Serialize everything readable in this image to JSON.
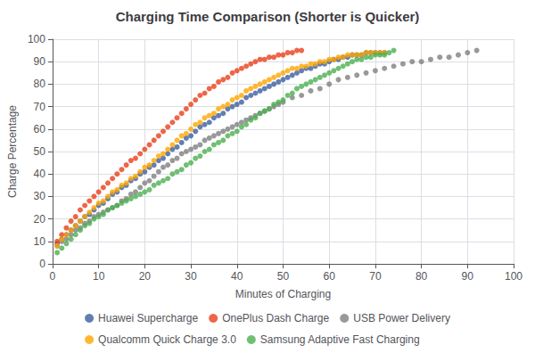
{
  "chart_data": {
    "type": "scatter",
    "title": "Charging Time Comparison (Shorter is Quicker)",
    "xlabel": "Minutes of Charging",
    "ylabel": "Charge Percentage",
    "xlim": [
      0,
      100
    ],
    "ylim": [
      0,
      100
    ],
    "xticks": [
      0,
      10,
      20,
      30,
      40,
      50,
      60,
      70,
      80,
      90,
      100
    ],
    "yticks": [
      0,
      10,
      20,
      30,
      40,
      50,
      60,
      70,
      80,
      90,
      100
    ],
    "grid": true,
    "legend": "bottom",
    "series": [
      {
        "name": "Huawei Supercharge",
        "color": "#3b5fa0",
        "x": [
          1,
          2,
          3,
          4,
          5,
          6,
          7,
          8,
          9,
          10,
          11,
          12,
          13,
          14,
          15,
          16,
          17,
          18,
          19,
          20,
          21,
          22,
          23,
          24,
          25,
          26,
          27,
          28,
          29,
          30,
          31,
          32,
          33,
          34,
          35,
          36,
          37,
          38,
          39,
          40,
          41,
          42,
          43,
          44,
          45,
          46,
          47,
          48,
          49,
          50,
          51,
          52,
          53,
          54,
          55,
          56,
          57,
          58,
          59,
          60,
          61,
          62,
          63,
          64,
          65,
          66,
          67,
          68,
          69,
          70,
          71,
          72
        ],
        "values": [
          9,
          11,
          13,
          15,
          17,
          19,
          21,
          22,
          24,
          26,
          27,
          29,
          31,
          32,
          34,
          35,
          37,
          38,
          40,
          41,
          43,
          44,
          46,
          47,
          49,
          51,
          52,
          54,
          56,
          57,
          59,
          61,
          62,
          63,
          65,
          66,
          67,
          69,
          70,
          71,
          72,
          74,
          75,
          76,
          77,
          78,
          79,
          80,
          81,
          82,
          83,
          84,
          85,
          86,
          87,
          87,
          88,
          89,
          89,
          90,
          91,
          91,
          92,
          92,
          93,
          93,
          93,
          94,
          94,
          94,
          94,
          94
        ]
      },
      {
        "name": "OnePlus Dash Charge",
        "color": "#e8401c",
        "x": [
          1,
          2,
          3,
          4,
          5,
          6,
          7,
          8,
          9,
          10,
          11,
          12,
          13,
          14,
          15,
          16,
          17,
          18,
          19,
          20,
          21,
          22,
          23,
          24,
          25,
          26,
          27,
          28,
          29,
          30,
          31,
          32,
          33,
          34,
          35,
          36,
          37,
          38,
          39,
          40,
          41,
          42,
          43,
          44,
          45,
          46,
          47,
          48,
          49,
          50,
          51,
          52,
          53,
          54
        ],
        "values": [
          10,
          13,
          16,
          19,
          21,
          24,
          26,
          28,
          30,
          32,
          34,
          36,
          38,
          40,
          42,
          44,
          46,
          47,
          49,
          51,
          53,
          55,
          57,
          59,
          61,
          63,
          65,
          67,
          69,
          71,
          73,
          75,
          76,
          78,
          79,
          81,
          82,
          83,
          85,
          86,
          87,
          88,
          89,
          90,
          91,
          91,
          92,
          92,
          93,
          93,
          94,
          94,
          95,
          95
        ]
      },
      {
        "name": "USB Power Delivery",
        "color": "#808080",
        "x": [
          1,
          2,
          3,
          4,
          5,
          6,
          7,
          8,
          9,
          10,
          11,
          12,
          13,
          14,
          15,
          16,
          17,
          18,
          19,
          20,
          21,
          22,
          23,
          24,
          25,
          26,
          27,
          28,
          29,
          30,
          31,
          32,
          33,
          34,
          35,
          36,
          37,
          38,
          39,
          40,
          41,
          42,
          43,
          44,
          45,
          46,
          47,
          48,
          49,
          50,
          52,
          54,
          56,
          58,
          60,
          62,
          64,
          66,
          68,
          70,
          72,
          74,
          76,
          78,
          80,
          82,
          84,
          86,
          88,
          90,
          92
        ],
        "values": [
          8,
          10,
          11,
          13,
          15,
          16,
          18,
          19,
          21,
          22,
          23,
          24,
          25,
          26,
          28,
          29,
          31,
          32,
          34,
          36,
          37,
          39,
          41,
          43,
          44,
          46,
          47,
          49,
          50,
          51,
          52,
          53,
          55,
          56,
          57,
          58,
          59,
          60,
          61,
          62,
          63,
          64,
          65,
          66,
          67,
          68,
          69,
          70,
          71,
          72,
          74,
          75,
          77,
          78,
          80,
          82,
          83,
          84,
          85,
          86,
          87,
          88,
          89,
          90,
          90,
          91,
          92,
          92,
          93,
          94,
          95
        ]
      },
      {
        "name": "Qualcomm Quick Charge 3.0",
        "color": "#ffa500",
        "x": [
          1,
          2,
          3,
          4,
          5,
          6,
          7,
          8,
          9,
          10,
          11,
          12,
          13,
          14,
          15,
          16,
          17,
          18,
          19,
          20,
          21,
          22,
          23,
          24,
          25,
          26,
          27,
          28,
          29,
          30,
          31,
          32,
          33,
          34,
          35,
          36,
          37,
          38,
          39,
          40,
          41,
          42,
          43,
          44,
          45,
          46,
          47,
          48,
          49,
          50,
          51,
          52,
          53,
          54,
          55,
          56,
          57,
          58,
          59,
          60,
          61,
          62,
          63,
          64,
          65,
          66,
          67,
          68,
          69,
          70,
          71,
          72
        ],
        "values": [
          8,
          11,
          13,
          15,
          17,
          19,
          21,
          23,
          25,
          27,
          28,
          30,
          32,
          33,
          35,
          36,
          38,
          39,
          41,
          43,
          44,
          46,
          48,
          49,
          51,
          53,
          55,
          57,
          58,
          60,
          62,
          63,
          65,
          66,
          67,
          69,
          70,
          71,
          73,
          74,
          75,
          77,
          78,
          79,
          80,
          81,
          82,
          83,
          84,
          85,
          86,
          87,
          87,
          88,
          88,
          89,
          89,
          90,
          90,
          91,
          91,
          92,
          92,
          93,
          93,
          93,
          93,
          94,
          94,
          94,
          94,
          94
        ]
      },
      {
        "name": "Samsung Adaptive Fast Charging",
        "color": "#4caf50",
        "x": [
          1,
          2,
          3,
          4,
          5,
          6,
          7,
          8,
          9,
          10,
          11,
          12,
          13,
          14,
          15,
          16,
          17,
          18,
          19,
          20,
          21,
          22,
          23,
          24,
          25,
          26,
          27,
          28,
          29,
          30,
          31,
          32,
          33,
          34,
          35,
          36,
          37,
          38,
          39,
          40,
          41,
          42,
          43,
          44,
          45,
          46,
          47,
          48,
          49,
          50,
          51,
          52,
          53,
          54,
          55,
          56,
          57,
          58,
          59,
          60,
          61,
          62,
          63,
          64,
          65,
          66,
          67,
          68,
          69,
          70,
          71,
          72,
          73,
          74
        ],
        "values": [
          5,
          7,
          9,
          11,
          13,
          15,
          17,
          18,
          20,
          21,
          22,
          24,
          25,
          26,
          27,
          28,
          29,
          30,
          31,
          32,
          33,
          35,
          36,
          37,
          38,
          40,
          41,
          42,
          44,
          45,
          47,
          48,
          50,
          51,
          53,
          54,
          55,
          57,
          58,
          59,
          61,
          62,
          64,
          65,
          67,
          68,
          69,
          71,
          72,
          73,
          75,
          76,
          78,
          79,
          80,
          81,
          82,
          83,
          84,
          85,
          86,
          87,
          88,
          89,
          90,
          91,
          91,
          92,
          92,
          93,
          93,
          93,
          94,
          95
        ]
      }
    ]
  }
}
